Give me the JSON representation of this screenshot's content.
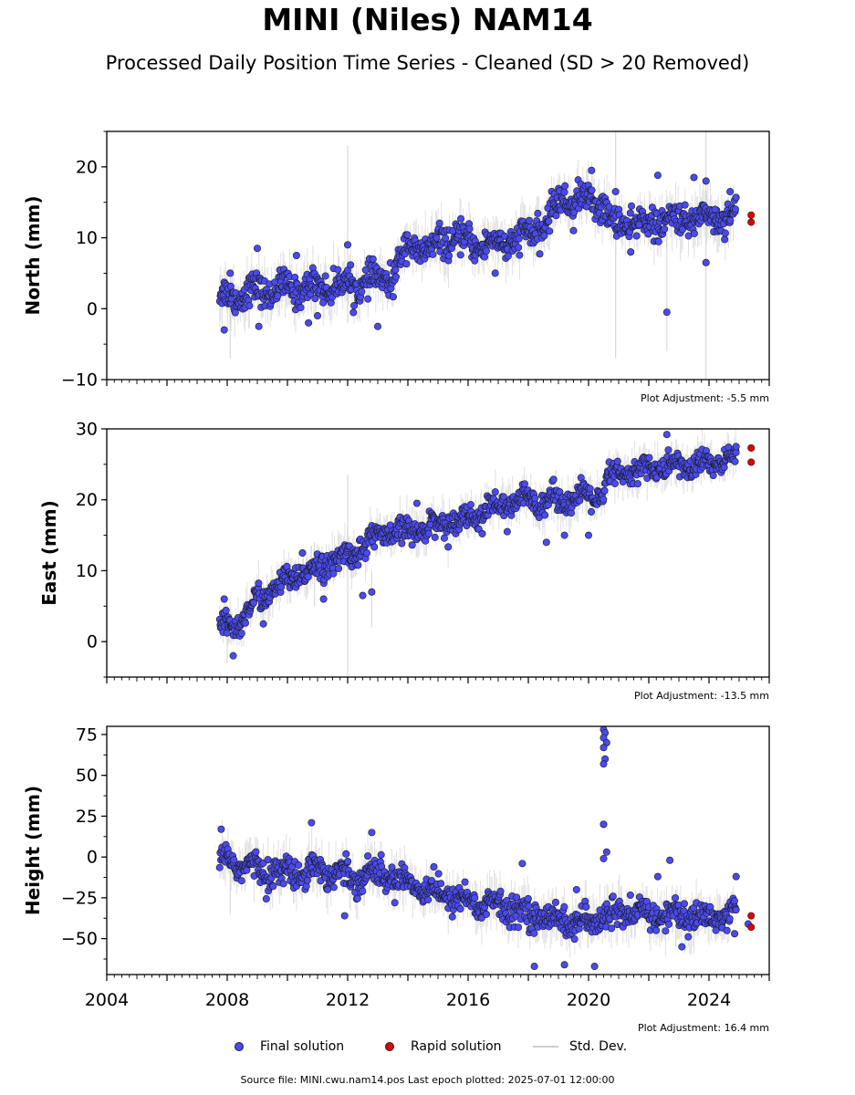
{
  "title": "MINI (Niles) NAM14",
  "subtitle": "Processed Daily Position Time Series - Cleaned (SD > 20 Removed)",
  "legend": {
    "final": "Final solution",
    "rapid": "Rapid solution",
    "stddev": "Std. Dev."
  },
  "footer": "Source file: MINI.cwu.nam14.pos  Last epoch plotted: 2025-07-01 12:00:00",
  "colors": {
    "final": "#4a4af0",
    "rapid": "#e00000",
    "stddev": "#c8c8c8",
    "edge": "#1a1a1a"
  },
  "chart_data": [
    {
      "type": "scatter",
      "ylabel": "North (mm)",
      "ylim": [
        -10,
        25
      ],
      "yticks": [
        -10,
        0,
        10,
        20
      ],
      "ytick_labels": [
        "−10",
        "0",
        "10",
        "20"
      ],
      "xlim": [
        2004,
        2026
      ],
      "xtick_labels_shown": false,
      "adjustment": "Plot Adjustment: -5.5 mm",
      "final_trend": [
        [
          2007.75,
          1.5
        ],
        [
          2009,
          2.5
        ],
        [
          2011,
          3
        ],
        [
          2012.5,
          3.5
        ],
        [
          2013.5,
          4.5
        ],
        [
          2014,
          9
        ],
        [
          2014.9,
          8
        ],
        [
          2015.1,
          10
        ],
        [
          2016.5,
          9
        ],
        [
          2017.5,
          9.5
        ],
        [
          2018.5,
          11.5
        ],
        [
          2019.1,
          15.5
        ],
        [
          2020.5,
          15
        ],
        [
          2020.7,
          12
        ],
        [
          2022,
          12
        ],
        [
          2024,
          13
        ],
        [
          2024.9,
          13
        ]
      ],
      "final_spread": 1.7,
      "final_outliers": [
        [
          2007.9,
          -3
        ],
        [
          2008.1,
          5
        ],
        [
          2009.0,
          8.5
        ],
        [
          2009.05,
          -2.5
        ],
        [
          2010.3,
          7.5
        ],
        [
          2010.7,
          -2
        ],
        [
          2011.0,
          -1
        ],
        [
          2012.0,
          9
        ],
        [
          2013.0,
          -2.5
        ],
        [
          2016.9,
          5
        ],
        [
          2019.5,
          11
        ],
        [
          2020.1,
          19.5
        ],
        [
          2020.9,
          16.5
        ],
        [
          2021.4,
          8
        ],
        [
          2022.3,
          18.8
        ],
        [
          2022.6,
          -0.5
        ],
        [
          2023.5,
          18.5
        ],
        [
          2023.9,
          6.5
        ],
        [
          2023.9,
          18
        ],
        [
          2024.7,
          16.5
        ],
        [
          2024.2,
          14
        ]
      ],
      "rapid": [
        [
          2025.4,
          13.2
        ],
        [
          2025.4,
          12.2
        ]
      ],
      "std_spikes": [
        [
          2012.0,
          -2,
          23
        ],
        [
          2020.9,
          -7,
          26
        ],
        [
          2023.9,
          -10,
          26
        ],
        [
          2022.6,
          -6,
          10
        ],
        [
          2008.1,
          -7,
          5
        ]
      ]
    },
    {
      "type": "scatter",
      "ylabel": "East (mm)",
      "ylim": [
        -5,
        30
      ],
      "yticks": [
        0,
        10,
        20,
        30
      ],
      "ytick_labels": [
        "0",
        "10",
        "20",
        "30"
      ],
      "xlim": [
        2004,
        2026
      ],
      "xtick_labels_shown": false,
      "adjustment": "Plot Adjustment: -13.5 mm",
      "final_trend": [
        [
          2007.75,
          1.5
        ],
        [
          2008.5,
          3
        ],
        [
          2009,
          6
        ],
        [
          2010,
          8.5
        ],
        [
          2011,
          10.5
        ],
        [
          2012,
          12
        ],
        [
          2013,
          15
        ],
        [
          2014,
          15.5
        ],
        [
          2015,
          16.5
        ],
        [
          2016,
          17.5
        ],
        [
          2017,
          19
        ],
        [
          2018,
          20
        ],
        [
          2019,
          20
        ],
        [
          2020.5,
          20.5
        ],
        [
          2020.6,
          23
        ],
        [
          2022,
          24.5
        ],
        [
          2024,
          25
        ],
        [
          2024.9,
          26
        ]
      ],
      "final_spread": 1.4,
      "final_outliers": [
        [
          2007.9,
          6
        ],
        [
          2008.2,
          -2
        ],
        [
          2009.2,
          2.5
        ],
        [
          2010.5,
          12.5
        ],
        [
          2011.2,
          6
        ],
        [
          2012.5,
          6.5
        ],
        [
          2012.8,
          7
        ],
        [
          2014.3,
          19.5
        ],
        [
          2017.3,
          15.5
        ],
        [
          2018.6,
          14
        ],
        [
          2019.2,
          15
        ],
        [
          2020.0,
          15
        ],
        [
          2022.6,
          29.2
        ],
        [
          2024.9,
          27.5
        ]
      ],
      "rapid": [
        [
          2025.4,
          27.3
        ],
        [
          2025.4,
          25.3
        ]
      ],
      "std_spikes": [
        [
          2012.0,
          -5,
          23.5
        ],
        [
          2010.9,
          5,
          14
        ],
        [
          2012.8,
          2,
          10
        ],
        [
          2008.0,
          -3,
          5
        ]
      ]
    },
    {
      "type": "scatter",
      "ylabel": "Height (mm)",
      "ylim": [
        -72,
        80
      ],
      "yticks": [
        -50,
        -25,
        0,
        25,
        50,
        75
      ],
      "ytick_labels": [
        "−50",
        "−25",
        "0",
        "25",
        "50",
        "75"
      ],
      "xlim": [
        2004,
        2026
      ],
      "xticks": [
        2004,
        2008,
        2012,
        2016,
        2020,
        2024
      ],
      "xtick_labels": [
        "2004",
        "2008",
        "2012",
        "2016",
        "2020",
        "2024"
      ],
      "xtick_labels_shown": true,
      "adjustment": "Plot Adjustment: 16.4 mm",
      "final_trend": [
        [
          2007.75,
          0
        ],
        [
          2009,
          -8
        ],
        [
          2010,
          -10
        ],
        [
          2011,
          -7
        ],
        [
          2012,
          -12
        ],
        [
          2013,
          -10
        ],
        [
          2014,
          -15
        ],
        [
          2015,
          -22
        ],
        [
          2016,
          -27
        ],
        [
          2017,
          -30
        ],
        [
          2018,
          -35
        ],
        [
          2019,
          -38
        ],
        [
          2020,
          -42
        ],
        [
          2020.6,
          -35
        ],
        [
          2022,
          -35
        ],
        [
          2024,
          -37
        ],
        [
          2024.9,
          -35
        ]
      ],
      "final_spread": 7,
      "final_outliers": [
        [
          2007.8,
          17
        ],
        [
          2010.8,
          21
        ],
        [
          2011.9,
          -36
        ],
        [
          2012.8,
          15
        ],
        [
          2017.8,
          -4
        ],
        [
          2018.2,
          -67
        ],
        [
          2019.2,
          -66
        ],
        [
          2019.6,
          -20
        ],
        [
          2020.2,
          -67
        ],
        [
          2020.5,
          20
        ],
        [
          2020.6,
          3
        ],
        [
          2020.5,
          -1
        ],
        [
          2022.3,
          -12
        ],
        [
          2022.7,
          -2
        ],
        [
          2023.1,
          -55
        ],
        [
          2024.9,
          -12
        ],
        [
          2024.85,
          -47
        ],
        [
          2025.3,
          -41
        ]
      ],
      "spike_cluster": [
        [
          2020.5,
          78
        ],
        [
          2020.55,
          76
        ],
        [
          2020.5,
          73
        ],
        [
          2020.6,
          70
        ],
        [
          2020.5,
          67
        ],
        [
          2020.55,
          60
        ],
        [
          2020.5,
          57
        ]
      ],
      "rapid": [
        [
          2025.4,
          -36
        ],
        [
          2025.4,
          -43
        ]
      ],
      "std_spikes": [
        [
          2022.9,
          -55,
          -20
        ],
        [
          2023.4,
          -60,
          -35
        ],
        [
          2008.1,
          -35,
          -5
        ]
      ]
    }
  ]
}
